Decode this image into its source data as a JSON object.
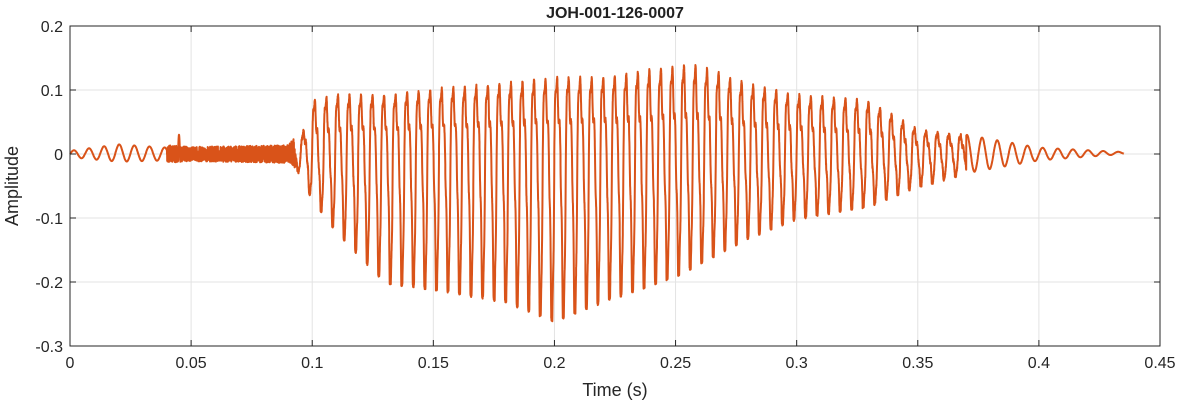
{
  "chart_data": {
    "type": "line",
    "title": "JOH-001-126-0007",
    "xlabel": "Time (s)",
    "ylabel": "Amplitude",
    "xlim": [
      0,
      0.45
    ],
    "ylim": [
      -0.3,
      0.2
    ],
    "xticks": [
      "0",
      "0.05",
      "0.1",
      "0.15",
      "0.2",
      "0.25",
      "0.3",
      "0.35",
      "0.4",
      "0.45"
    ],
    "yticks": [
      "0.2",
      "0.1",
      "0",
      "-0.1",
      "-0.2",
      "-0.3"
    ],
    "grid": true,
    "line_color": "#D95319",
    "signal_end": 0.435,
    "fundamental_hz": 210,
    "envelope": {
      "time": [
        0,
        0.02,
        0.04,
        0.05,
        0.09,
        0.095,
        0.1,
        0.11,
        0.13,
        0.15,
        0.18,
        0.2,
        0.22,
        0.25,
        0.26,
        0.28,
        0.3,
        0.33,
        0.35,
        0.37,
        0.4,
        0.435
      ],
      "upper": [
        0.005,
        0.015,
        0.01,
        0.008,
        0.01,
        0.02,
        0.09,
        0.1,
        0.1,
        0.11,
        0.12,
        0.13,
        0.13,
        0.15,
        0.15,
        0.12,
        0.1,
        0.09,
        0.04,
        0.03,
        0.01,
        0.003
      ],
      "lower": [
        -0.005,
        -0.012,
        -0.01,
        -0.008,
        -0.01,
        -0.03,
        -0.07,
        -0.12,
        -0.2,
        -0.21,
        -0.23,
        -0.26,
        -0.23,
        -0.19,
        -0.17,
        -0.13,
        -0.1,
        -0.08,
        -0.05,
        -0.03,
        -0.01,
        0
      ]
    },
    "transient": {
      "time": 0.045,
      "value": 0.03
    }
  }
}
